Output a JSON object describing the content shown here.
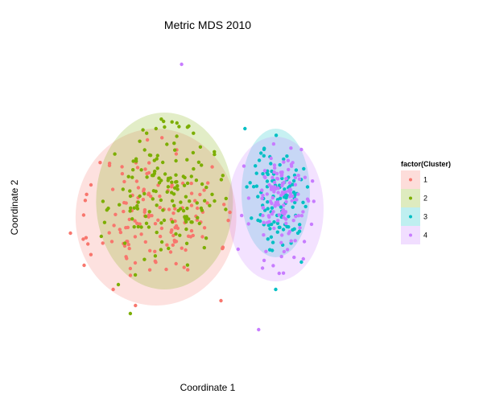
{
  "chart_data": {
    "type": "scatter",
    "title": "Metric MDS 2010",
    "xlabel": "Coordinate 1",
    "ylabel": "Coordinate 2",
    "xlim": [
      -1.0,
      1.0
    ],
    "ylim": [
      -1.0,
      1.0
    ],
    "grid": false,
    "legend": {
      "title": "factor(Cluster)",
      "placement": "right",
      "entries": [
        "1",
        "2",
        "3",
        "4"
      ]
    },
    "series": [
      {
        "name": "1",
        "color": "#F8766D",
        "fill": "#F8766D",
        "ellipse": {
          "cx": -0.3,
          "cy": -0.1,
          "rx": 0.47,
          "ry": 0.55
        },
        "seed": 11,
        "n": 140,
        "scatter_center": [
          -0.3,
          -0.1
        ],
        "scatter_spread": [
          0.38,
          0.42
        ],
        "outliers": [
          [
            -0.68,
            0.1
          ],
          [
            -0.8,
            -0.2
          ],
          [
            -0.72,
            -0.4
          ],
          [
            -0.55,
            -0.55
          ],
          [
            -0.42,
            -0.65
          ],
          [
            0.08,
            -0.62
          ],
          [
            -0.35,
            0.38
          ]
        ]
      },
      {
        "name": "2",
        "color": "#7CAE00",
        "fill": "#7CAE00",
        "ellipse": {
          "cx": -0.25,
          "cy": 0.0,
          "rx": 0.4,
          "ry": 0.55
        },
        "seed": 23,
        "n": 150,
        "scatter_center": [
          -0.25,
          0.05
        ],
        "scatter_spread": [
          0.32,
          0.4
        ],
        "outliers": [
          [
            -0.62,
            -0.22
          ],
          [
            -0.52,
            -0.52
          ],
          [
            -0.45,
            -0.7
          ],
          [
            -0.3,
            0.45
          ],
          [
            -0.25,
            0.46
          ]
        ]
      },
      {
        "name": "3",
        "color": "#00BFC4",
        "fill": "#00BFC4",
        "ellipse": {
          "cx": 0.4,
          "cy": 0.05,
          "rx": 0.2,
          "ry": 0.4
        },
        "seed": 37,
        "n": 110,
        "scatter_center": [
          0.42,
          0.02
        ],
        "scatter_spread": [
          0.16,
          0.32
        ],
        "outliers": [
          [
            0.22,
            0.45
          ],
          [
            0.4,
            -0.55
          ],
          [
            0.55,
            -0.38
          ]
        ]
      },
      {
        "name": "4",
        "color": "#C77CFF",
        "fill": "#C77CFF",
        "ellipse": {
          "cx": 0.4,
          "cy": -0.05,
          "rx": 0.28,
          "ry": 0.45
        },
        "seed": 53,
        "n": 130,
        "scatter_center": [
          0.44,
          0.0
        ],
        "scatter_spread": [
          0.18,
          0.35
        ],
        "outliers": [
          [
            -0.15,
            0.85
          ],
          [
            0.42,
            -0.45
          ],
          [
            0.3,
            -0.8
          ],
          [
            0.55,
            0.32
          ],
          [
            0.18,
            -0.3
          ]
        ]
      }
    ]
  }
}
